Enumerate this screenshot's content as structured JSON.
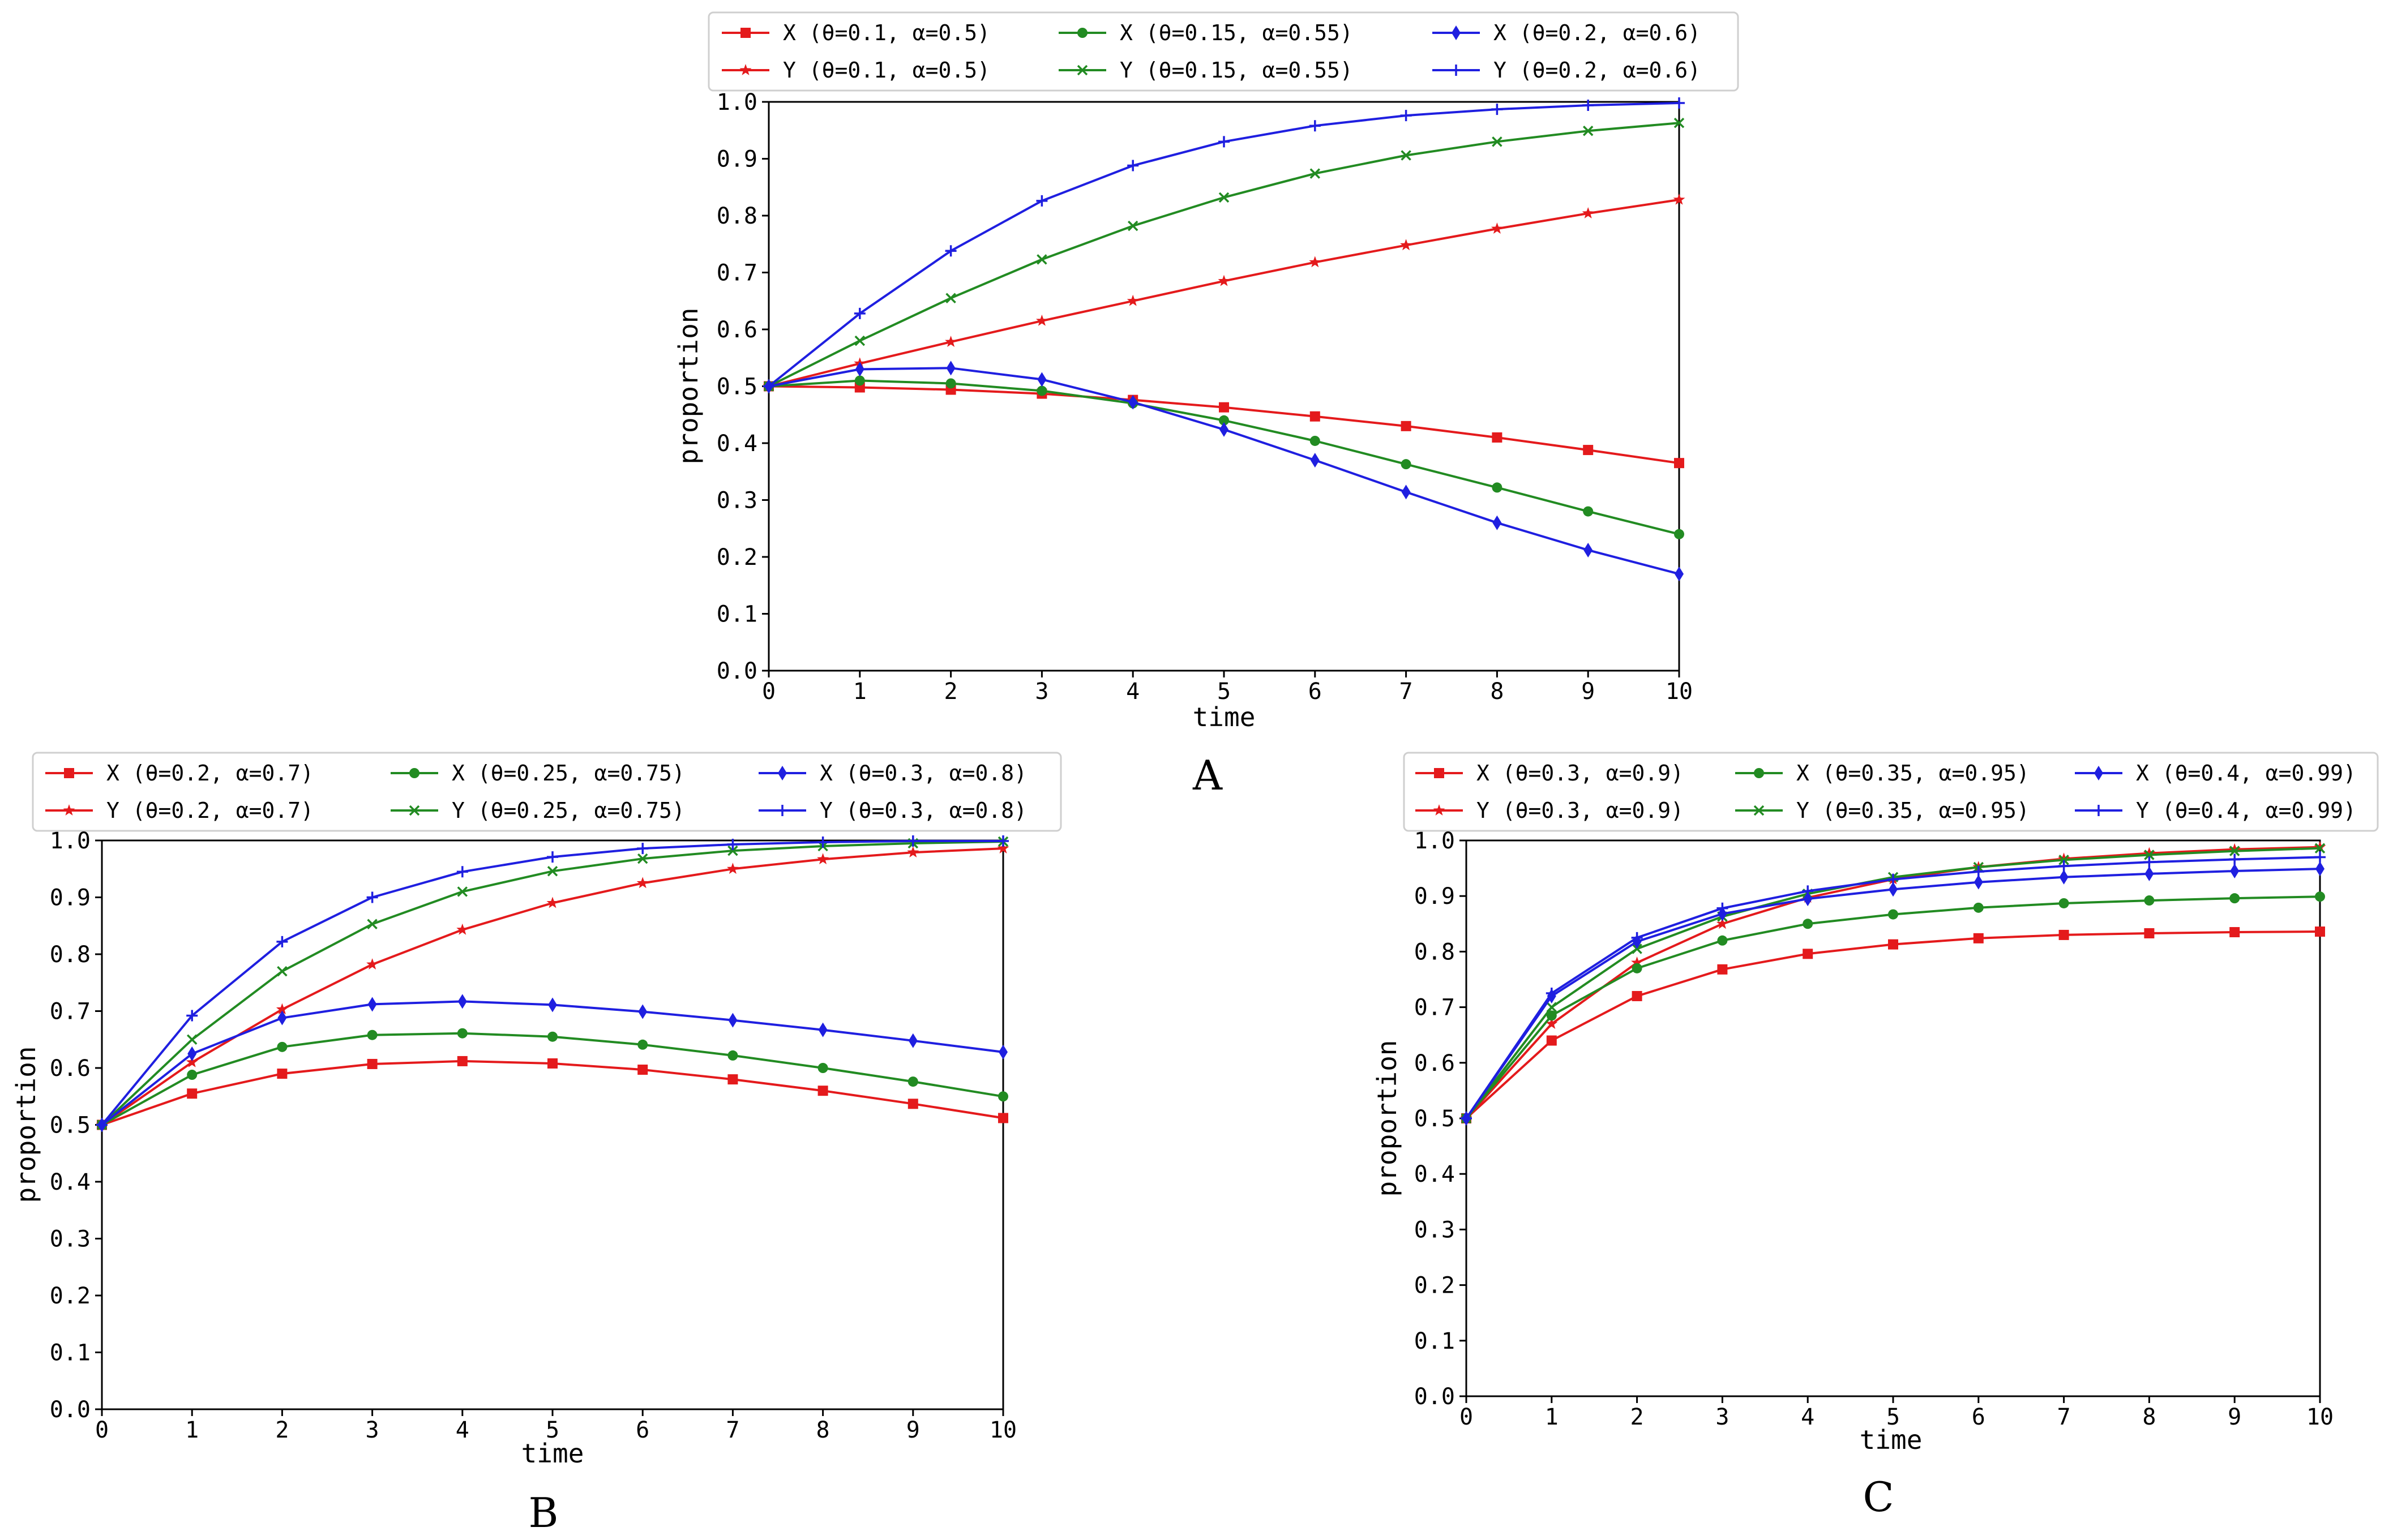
{
  "chart_data": [
    {
      "type": "line",
      "panel_label": "A",
      "xlabel": "time",
      "ylabel": "proportion",
      "xlim": [
        0,
        10
      ],
      "ylim": [
        0,
        1
      ],
      "x": [
        0,
        1,
        2,
        3,
        4,
        5,
        6,
        7,
        8,
        9,
        10
      ],
      "x_ticks": [
        "0",
        "1",
        "2",
        "3",
        "4",
        "5",
        "6",
        "7",
        "8",
        "9",
        "10"
      ],
      "y_ticks": [
        "0.0",
        "0.1",
        "0.2",
        "0.3",
        "0.4",
        "0.5",
        "0.6",
        "0.7",
        "0.8",
        "0.9",
        "1.0"
      ],
      "legend_position": "top",
      "series": [
        {
          "name": "X (θ=0.1,  α=0.5)",
          "color": "#e41a1c",
          "marker": "square",
          "values": [
            0.5,
            0.498,
            0.494,
            0.487,
            0.476,
            0.463,
            0.447,
            0.43,
            0.41,
            0.388,
            0.365
          ]
        },
        {
          "name": "Y (θ=0.1,  α=0.5)",
          "color": "#e41a1c",
          "marker": "star",
          "values": [
            0.5,
            0.54,
            0.578,
            0.615,
            0.65,
            0.685,
            0.718,
            0.748,
            0.777,
            0.804,
            0.828
          ]
        },
        {
          "name": "X (θ=0.15,  α=0.55)",
          "color": "#228b22",
          "marker": "circle",
          "values": [
            0.5,
            0.51,
            0.505,
            0.492,
            0.47,
            0.44,
            0.404,
            0.363,
            0.322,
            0.28,
            0.24
          ]
        },
        {
          "name": "Y (θ=0.15,  α=0.55)",
          "color": "#228b22",
          "marker": "x",
          "values": [
            0.5,
            0.58,
            0.655,
            0.723,
            0.782,
            0.832,
            0.874,
            0.906,
            0.93,
            0.949,
            0.963
          ]
        },
        {
          "name": "X (θ=0.2,  α=0.6)",
          "color": "#1f1fe0",
          "marker": "diamond",
          "values": [
            0.5,
            0.53,
            0.532,
            0.512,
            0.472,
            0.424,
            0.37,
            0.314,
            0.26,
            0.212,
            0.17
          ]
        },
        {
          "name": "Y (θ=0.2,  α=0.6)",
          "color": "#1f1fe0",
          "marker": "plus",
          "values": [
            0.5,
            0.628,
            0.738,
            0.826,
            0.888,
            0.93,
            0.958,
            0.976,
            0.987,
            0.994,
            0.998
          ]
        }
      ]
    },
    {
      "type": "line",
      "panel_label": "B",
      "xlabel": "time",
      "ylabel": "proportion",
      "xlim": [
        0,
        10
      ],
      "ylim": [
        0,
        1
      ],
      "x": [
        0,
        1,
        2,
        3,
        4,
        5,
        6,
        7,
        8,
        9,
        10
      ],
      "x_ticks": [
        "0",
        "1",
        "2",
        "3",
        "4",
        "5",
        "6",
        "7",
        "8",
        "9",
        "10"
      ],
      "y_ticks": [
        "0.0",
        "0.1",
        "0.2",
        "0.3",
        "0.4",
        "0.5",
        "0.6",
        "0.7",
        "0.8",
        "0.9",
        "1.0"
      ],
      "legend_position": "top",
      "series": [
        {
          "name": "X (θ=0.2,  α=0.7)",
          "color": "#e41a1c",
          "marker": "square",
          "values": [
            0.5,
            0.555,
            0.59,
            0.607,
            0.612,
            0.608,
            0.597,
            0.58,
            0.56,
            0.537,
            0.512
          ]
        },
        {
          "name": "Y (θ=0.2,  α=0.7)",
          "color": "#e41a1c",
          "marker": "star",
          "values": [
            0.5,
            0.61,
            0.703,
            0.782,
            0.843,
            0.89,
            0.925,
            0.95,
            0.967,
            0.979,
            0.986
          ]
        },
        {
          "name": "X (θ=0.25,  α=0.75)",
          "color": "#228b22",
          "marker": "circle",
          "values": [
            0.5,
            0.588,
            0.637,
            0.658,
            0.661,
            0.655,
            0.641,
            0.622,
            0.6,
            0.576,
            0.55
          ]
        },
        {
          "name": "Y (θ=0.25,  α=0.75)",
          "color": "#228b22",
          "marker": "x",
          "values": [
            0.5,
            0.65,
            0.77,
            0.853,
            0.91,
            0.946,
            0.968,
            0.982,
            0.99,
            0.995,
            0.998
          ]
        },
        {
          "name": "X (θ=0.3,  α=0.8)",
          "color": "#1f1fe0",
          "marker": "diamond",
          "values": [
            0.5,
            0.625,
            0.688,
            0.712,
            0.717,
            0.711,
            0.699,
            0.684,
            0.667,
            0.648,
            0.628
          ]
        },
        {
          "name": "Y (θ=0.3,  α=0.8)",
          "color": "#1f1fe0",
          "marker": "plus",
          "values": [
            0.5,
            0.692,
            0.822,
            0.9,
            0.945,
            0.971,
            0.986,
            0.993,
            0.997,
            0.999,
            0.999
          ]
        }
      ]
    },
    {
      "type": "line",
      "panel_label": "C",
      "xlabel": "time",
      "ylabel": "proportion",
      "xlim": [
        0,
        10
      ],
      "ylim": [
        0,
        1
      ],
      "x": [
        0,
        1,
        2,
        3,
        4,
        5,
        6,
        7,
        8,
        9,
        10
      ],
      "x_ticks": [
        "0",
        "1",
        "2",
        "3",
        "4",
        "5",
        "6",
        "7",
        "8",
        "9",
        "10"
      ],
      "y_ticks": [
        "0.0",
        "0.1",
        "0.2",
        "0.3",
        "0.4",
        "0.5",
        "0.6",
        "0.7",
        "0.8",
        "0.9",
        "1.0"
      ],
      "legend_position": "top",
      "series": [
        {
          "name": "X (θ=0.3,  α=0.9)",
          "color": "#e41a1c",
          "marker": "square",
          "values": [
            0.5,
            0.64,
            0.72,
            0.768,
            0.796,
            0.813,
            0.824,
            0.83,
            0.833,
            0.835,
            0.836
          ]
        },
        {
          "name": "Y (θ=0.3,  α=0.9)",
          "color": "#e41a1c",
          "marker": "star",
          "values": [
            0.5,
            0.67,
            0.78,
            0.85,
            0.897,
            0.93,
            0.952,
            0.967,
            0.977,
            0.984,
            0.988
          ]
        },
        {
          "name": "X (θ=0.35,  α=0.95)",
          "color": "#228b22",
          "marker": "circle",
          "values": [
            0.5,
            0.685,
            0.77,
            0.82,
            0.85,
            0.867,
            0.879,
            0.887,
            0.892,
            0.896,
            0.899
          ]
        },
        {
          "name": "Y (θ=0.35,  α=0.95)",
          "color": "#228b22",
          "marker": "x",
          "values": [
            0.5,
            0.7,
            0.805,
            0.863,
            0.904,
            0.934,
            0.952,
            0.965,
            0.974,
            0.981,
            0.986
          ]
        },
        {
          "name": "X (θ=0.4,  α=0.99)",
          "color": "#1f1fe0",
          "marker": "diamond",
          "values": [
            0.5,
            0.72,
            0.818,
            0.868,
            0.895,
            0.912,
            0.925,
            0.934,
            0.94,
            0.945,
            0.949
          ]
        },
        {
          "name": "Y (θ=0.4,  α=0.99)",
          "color": "#1f1fe0",
          "marker": "plus",
          "values": [
            0.5,
            0.725,
            0.825,
            0.878,
            0.909,
            0.93,
            0.944,
            0.954,
            0.961,
            0.966,
            0.97
          ]
        }
      ]
    }
  ]
}
